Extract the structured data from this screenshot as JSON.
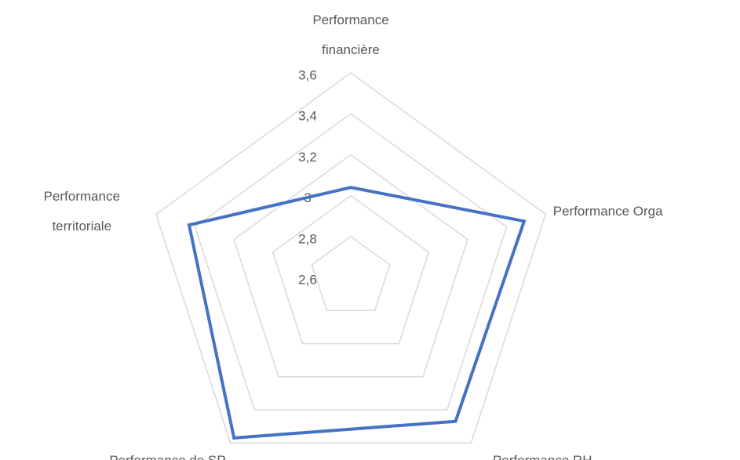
{
  "chart_data": {
    "type": "radar",
    "categories": [
      "Performance financière",
      "Performance Orga",
      "Performance RH",
      "Performance de SP",
      "Performance territoriale"
    ],
    "series": [
      {
        "color": "#4472c4",
        "values": [
          3.04,
          3.49,
          3.47,
          3.57,
          3.43
        ]
      }
    ],
    "ylim": [
      2.6,
      3.6
    ],
    "yticks": [
      {
        "value": 2.6,
        "label": "2,6"
      },
      {
        "value": 2.8,
        "label": "2,8"
      },
      3,
      {
        "value": 3.2,
        "label": "3,2"
      },
      {
        "value": 3.4,
        "label": "3,4"
      },
      {
        "value": 3.6,
        "label": "3,6"
      }
    ],
    "grid": true
  }
}
